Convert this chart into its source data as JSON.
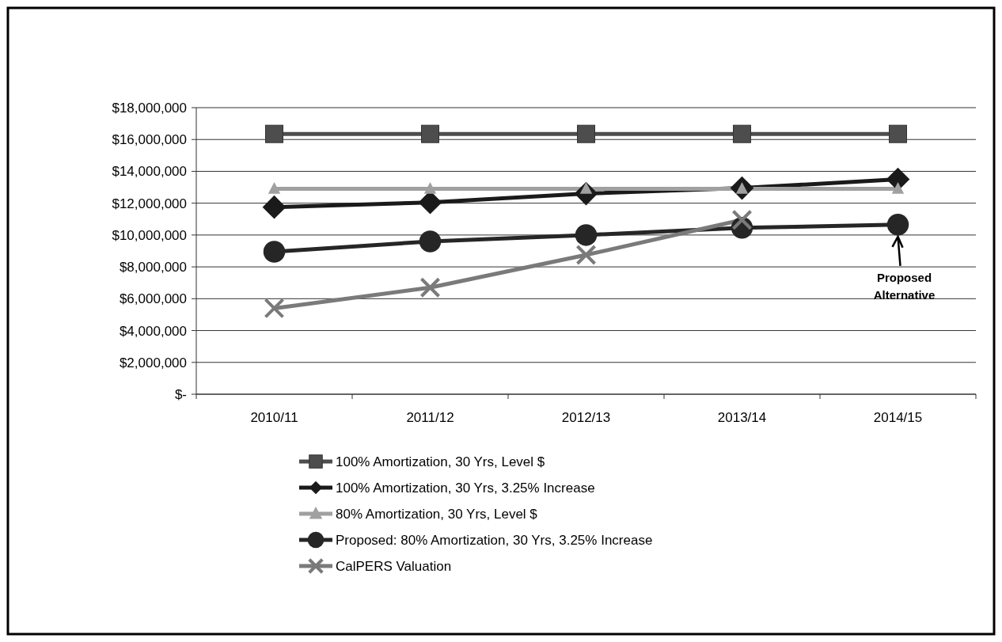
{
  "chart_data": {
    "type": "line",
    "categories": [
      "2010/11",
      "2011/12",
      "2012/13",
      "2013/14",
      "2014/15"
    ],
    "series": [
      {
        "name": "100% Amortization, 30 Yrs, Level $",
        "color": "#4d4d4d",
        "marker": "square",
        "values": [
          16350000,
          16350000,
          16350000,
          16350000,
          16350000
        ]
      },
      {
        "name": "100% Amortization, 30 Yrs, 3.25% Increase",
        "color": "#1a1a1a",
        "marker": "diamond",
        "values": [
          11750000,
          12050000,
          12600000,
          12950000,
          13500000
        ]
      },
      {
        "name": "80% Amortization, 30 Yrs, Level $",
        "color": "#a0a0a0",
        "marker": "triangle",
        "values": [
          12900000,
          12900000,
          12900000,
          12900000,
          12900000
        ]
      },
      {
        "name": "Proposed: 80% Amortization, 30 Yrs, 3.25% Increase",
        "color": "#262626",
        "marker": "circle",
        "values": [
          8950000,
          9600000,
          10000000,
          10450000,
          10650000
        ]
      },
      {
        "name": "CalPERS Valuation",
        "color": "#7a7a7a",
        "marker": "cross",
        "values": [
          5400000,
          6700000,
          8750000,
          10950000,
          null
        ]
      }
    ],
    "ylim": [
      0,
      18000000
    ],
    "yticks": [
      {
        "value": 0,
        "label": "$-"
      },
      {
        "value": 2000000,
        "label": "$2,000,000"
      },
      {
        "value": 4000000,
        "label": "$4,000,000"
      },
      {
        "value": 6000000,
        "label": "$6,000,000"
      },
      {
        "value": 8000000,
        "label": "$8,000,000"
      },
      {
        "value": 10000000,
        "label": "$10,000,000"
      },
      {
        "value": 12000000,
        "label": "$12,000,000"
      },
      {
        "value": 14000000,
        "label": "$14,000,000"
      },
      {
        "value": 16000000,
        "label": "$16,000,000"
      },
      {
        "value": 18000000,
        "label": "$18,000,000"
      }
    ],
    "grid": "y",
    "legend": "bottom",
    "annotations": [
      "Proposed Alternative"
    ]
  }
}
